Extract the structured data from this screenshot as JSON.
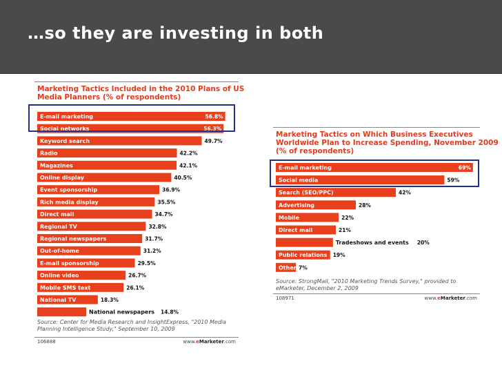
{
  "slide": {
    "title": "…so they are investing in both"
  },
  "chart_data": [
    {
      "type": "bar",
      "orientation": "horizontal",
      "title": "Marketing Tactics Included in the 2010 Plans of US Media Planners (% of respondents)",
      "title_lines": [
        "Marketing Tactics Included in the 2010 Plans of US",
        "Media Planners (% of respondents)"
      ],
      "categories": [
        "E-mail marketing",
        "Social networks",
        "Keyword search",
        "Radio",
        "Magazines",
        "Online display",
        "Event sponsorship",
        "Rich media display",
        "Direct mail",
        "Regional TV",
        "Regional newspapers",
        "Out-of-home",
        "E-mail sponsorship",
        "Online video",
        "Mobile SMS text",
        "National TV",
        "National newspapers"
      ],
      "values": [
        56.8,
        56.3,
        49.7,
        42.2,
        42.1,
        40.5,
        36.9,
        35.5,
        34.7,
        32.8,
        31.7,
        31.2,
        29.5,
        26.7,
        26.1,
        18.3,
        14.8
      ],
      "value_labels": [
        "56.8%",
        "56.3%",
        "49.7%",
        "42.2%",
        "42.1%",
        "40.5%",
        "36.9%",
        "35.5%",
        "34.7%",
        "32.8%",
        "31.7%",
        "31.2%",
        "29.5%",
        "26.7%",
        "26.1%",
        "18.3%",
        "14.8%"
      ],
      "xlim": [
        0,
        60
      ],
      "bar_color": "#e8401c",
      "highlighted": [
        "E-mail marketing",
        "Social networks"
      ],
      "source_lines": [
        "Source: Center for Media Research and InsightExpress, \"2010 Media",
        "Planning Intelligence Study,\" September 10, 2009"
      ],
      "chart_id": "106888",
      "brand": {
        "prefix": "www.",
        "red": "e",
        "dark": "Marketer",
        "suffix": ".com"
      }
    },
    {
      "type": "bar",
      "orientation": "horizontal",
      "title": "Marketing Tactics on Which Business Executives Worldwide Plan to Increase Spending, November 2009 (% of respondents)",
      "title_lines": [
        "Marketing Tactics on Which Business Executives",
        "Worldwide Plan to Increase Spending, November 2009",
        "(% of respondents)"
      ],
      "categories": [
        "E-mail marketing",
        "Social media",
        "Search (SEO/PPC)",
        "Advertising",
        "Mobile",
        "Direct mail",
        "Tradeshows and events",
        "Public relations",
        "Other"
      ],
      "values": [
        69,
        59,
        42,
        28,
        22,
        21,
        20,
        19,
        7
      ],
      "value_labels": [
        "69%",
        "59%",
        "42%",
        "28%",
        "22%",
        "21%",
        "20%",
        "19%",
        "7%"
      ],
      "xlim": [
        0,
        70
      ],
      "bar_color": "#e8401c",
      "highlighted": [
        "E-mail marketing",
        "Social media"
      ],
      "source_lines": [
        "Source: StrongMail, \"2010 Marketing Trends Survey,\" provided to",
        "eMarketer, December 2, 2009"
      ],
      "chart_id": "108971",
      "brand": {
        "prefix": "www.",
        "red": "e",
        "dark": "Marketer",
        "suffix": ".com"
      }
    }
  ]
}
